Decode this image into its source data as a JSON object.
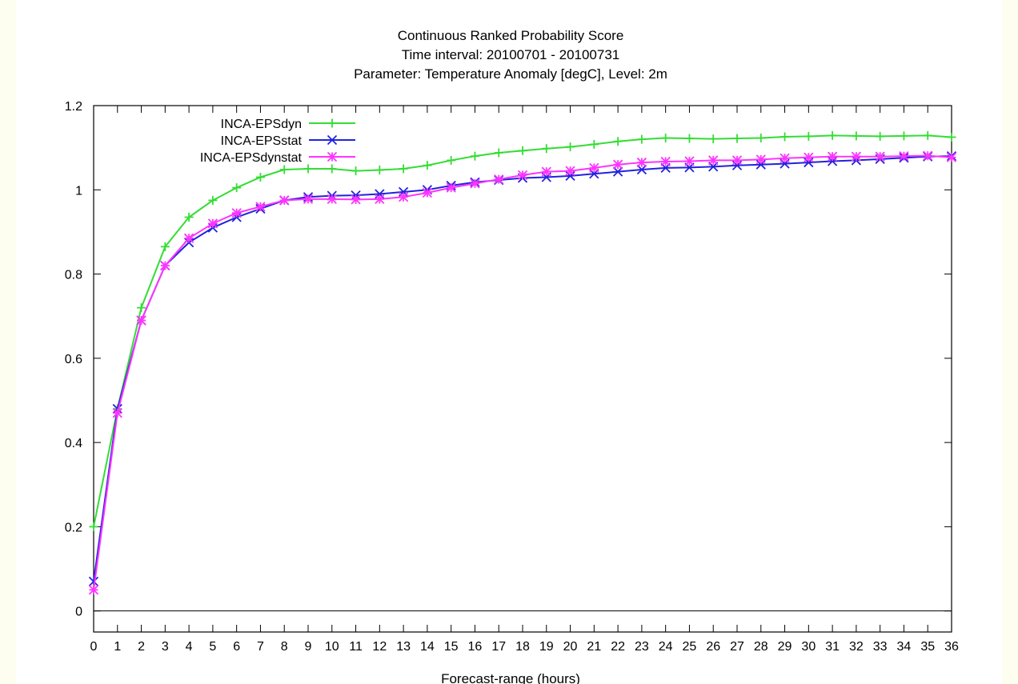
{
  "chart_data": {
    "type": "line",
    "title": [
      "Continuous Ranked Probability Score",
      "Time interval: 20100701 - 20100731",
      "Parameter: Temperature Anomaly [degC], Level: 2m"
    ],
    "xlabel": "Forecast-range (hours)",
    "ylabel": "",
    "xlim": [
      0,
      36
    ],
    "ylim": [
      -0.05,
      1.2
    ],
    "yticks": [
      0,
      0.2,
      0.4,
      0.6,
      0.8,
      1,
      1.2
    ],
    "xticks": [
      0,
      1,
      2,
      3,
      4,
      5,
      6,
      7,
      8,
      9,
      10,
      11,
      12,
      13,
      14,
      15,
      16,
      17,
      18,
      19,
      20,
      21,
      22,
      23,
      24,
      25,
      26,
      27,
      28,
      29,
      30,
      31,
      32,
      33,
      34,
      35,
      36
    ],
    "grid": false,
    "legend_position": "top-left",
    "x": [
      0,
      1,
      2,
      3,
      4,
      5,
      6,
      7,
      8,
      9,
      10,
      11,
      12,
      13,
      14,
      15,
      16,
      17,
      18,
      19,
      20,
      21,
      22,
      23,
      24,
      25,
      26,
      27,
      28,
      29,
      30,
      31,
      32,
      33,
      34,
      35,
      36
    ],
    "series": [
      {
        "name": "INCA-EPSdyn",
        "color": "#33dd33",
        "marker": "plus",
        "values": [
          0.2,
          0.48,
          0.72,
          0.865,
          0.935,
          0.975,
          1.005,
          1.03,
          1.048,
          1.05,
          1.05,
          1.045,
          1.047,
          1.05,
          1.058,
          1.07,
          1.08,
          1.088,
          1.093,
          1.098,
          1.102,
          1.108,
          1.115,
          1.12,
          1.123,
          1.122,
          1.121,
          1.122,
          1.123,
          1.126,
          1.127,
          1.129,
          1.128,
          1.127,
          1.128,
          1.129,
          1.125
        ]
      },
      {
        "name": "INCA-EPSstat",
        "color": "#2222dd",
        "marker": "x",
        "values": [
          0.07,
          0.48,
          0.69,
          0.82,
          0.875,
          0.91,
          0.935,
          0.955,
          0.975,
          0.983,
          0.986,
          0.987,
          0.99,
          0.995,
          1.0,
          1.01,
          1.018,
          1.023,
          1.028,
          1.03,
          1.033,
          1.038,
          1.043,
          1.048,
          1.052,
          1.053,
          1.055,
          1.058,
          1.06,
          1.062,
          1.065,
          1.068,
          1.07,
          1.073,
          1.076,
          1.079,
          1.08
        ]
      },
      {
        "name": "INCA-EPSdynstat",
        "color": "#ff33ff",
        "marker": "star",
        "values": [
          0.05,
          0.47,
          0.69,
          0.82,
          0.885,
          0.92,
          0.945,
          0.96,
          0.975,
          0.978,
          0.978,
          0.977,
          0.978,
          0.983,
          0.993,
          1.005,
          1.015,
          1.025,
          1.035,
          1.043,
          1.045,
          1.052,
          1.06,
          1.065,
          1.067,
          1.068,
          1.07,
          1.07,
          1.072,
          1.075,
          1.077,
          1.079,
          1.079,
          1.079,
          1.08,
          1.081,
          1.077
        ]
      }
    ]
  }
}
